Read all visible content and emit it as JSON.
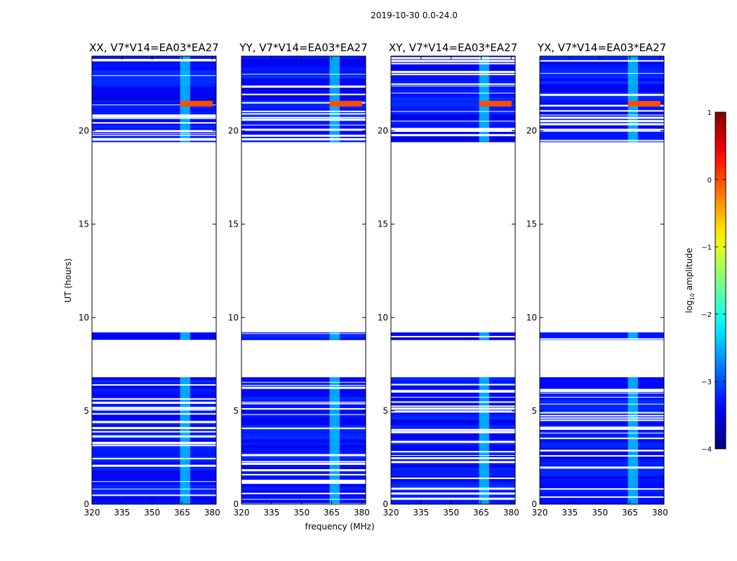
{
  "suptitle": "2019-10-30 0.0-24.0",
  "chart_data": {
    "type": "heatmap",
    "colormap": "jet",
    "xlabel": "frequency (MHz)",
    "ylabel": "UT (hours)",
    "xlim": [
      320,
      382
    ],
    "ylim": [
      0,
      24
    ],
    "xticks": [
      320,
      335,
      350,
      365,
      380
    ],
    "yticks": [
      0,
      5,
      10,
      15,
      20
    ],
    "colorbar": {
      "label": "log10 amplitude",
      "label_main": "log",
      "label_sub": "10",
      "label_rest": " amplitude",
      "range": [
        -4,
        1
      ],
      "ticks": [
        -4,
        -3,
        -2,
        -1,
        0,
        1
      ],
      "tick_labels": [
        "−4",
        "−3",
        "−2",
        "−1",
        "0",
        "1"
      ]
    },
    "data_time_ranges_hours": [
      [
        0,
        6.8
      ],
      [
        8.8,
        9.2
      ],
      [
        19.4,
        24
      ]
    ],
    "rfi_band_mhz": [
      364,
      369
    ],
    "panels": [
      {
        "title": "XX, V7*V14=EA03*EA27",
        "strong_rfi_utc": [
          21.3,
          21.6
        ],
        "strong_rfi_log_amp": 0
      },
      {
        "title": "YY, V7*V14=EA03*EA27",
        "strong_rfi_utc": [
          21.3,
          21.6
        ],
        "strong_rfi_log_amp": 0
      },
      {
        "title": "XY, V7*V14=EA03*EA27",
        "strong_rfi_utc": [
          21.3,
          21.6
        ],
        "strong_rfi_log_amp": 0
      },
      {
        "title": "YX, V7*V14=EA03*EA27",
        "strong_rfi_utc": [
          21.3,
          21.6
        ],
        "strong_rfi_log_amp": 0
      }
    ]
  }
}
